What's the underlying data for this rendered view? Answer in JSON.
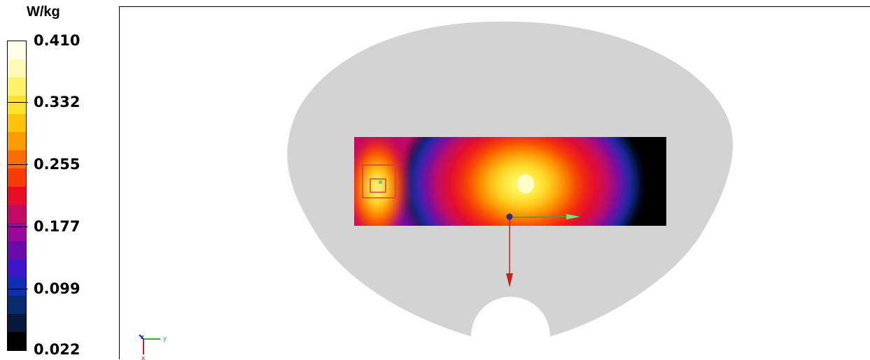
{
  "legend": {
    "unit": "W/kg",
    "ticks": [
      "0.410",
      "0.332",
      "0.255",
      "0.177",
      "0.099",
      "0.022"
    ],
    "band_colors": [
      "#000000",
      "#08173a",
      "#0a2a6e",
      "#0f2fb0",
      "#3b17c8",
      "#6a0aa8",
      "#98089a",
      "#c00a66",
      "#e80c24",
      "#f73a06",
      "#fb6d03",
      "#fd9b05",
      "#ffc30c",
      "#ffe22a",
      "#fff169",
      "#fffab5",
      "#ffffe8"
    ]
  },
  "axes_triad": {
    "labels": [
      "z",
      "y",
      "x"
    ]
  },
  "colors": {
    "phantom": "#d3d3d3",
    "x_axis": "#c81e1e",
    "y_axis": "#3ca83c",
    "origin": "#1d2f8f",
    "probe_box": "#c84646",
    "probe_point": "#6cd46c"
  }
}
